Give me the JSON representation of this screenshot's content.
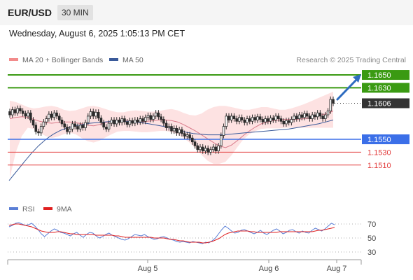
{
  "header": {
    "symbol": "EUR/USD",
    "timeframe": "30 MIN",
    "datetime": "Wednesday, August 6, 2025 1:05:13 PM CET"
  },
  "legend": {
    "ma20_label": "MA 20 + Bollinger Bands",
    "ma50_label": "MA 50",
    "credit": "Research © 2025 Trading Central"
  },
  "rsi_legend": {
    "rsi_label": "RSI",
    "ma_label": "9MA"
  },
  "colors": {
    "ma20": "#f28b8b",
    "ma50": "#3a5a9a",
    "band_fill": "#fde2e2",
    "resistance": "#3a9a12",
    "support_blue": "#3b6fe8",
    "support_red": "#e23b3b",
    "current": "#333333",
    "arrow": "#2e6cc0",
    "candle": "#2b2b2b",
    "rsi": "#5b7fd6",
    "rsi_ma": "#e02020"
  },
  "chart_data": [
    {
      "type": "candlestick",
      "title": "",
      "price_range": [
        1.1475,
        1.1662
      ],
      "x_tick_labels": [
        "Aug 5",
        "Aug 6",
        "Aug 7"
      ],
      "levels": [
        {
          "label": "1.1650",
          "value": 1.165,
          "kind": "resistance"
        },
        {
          "label": "1.1630",
          "value": 1.163,
          "kind": "resistance"
        },
        {
          "label": "1.1606",
          "value": 1.1606,
          "kind": "current"
        },
        {
          "label": "1.1550",
          "value": 1.155,
          "kind": "pivot"
        },
        {
          "label": "1.1530",
          "value": 1.153,
          "kind": "support"
        },
        {
          "label": "1.1510",
          "value": 1.151,
          "kind": "support"
        }
      ],
      "candles": [
        [
          1.1593,
          1.1588
        ],
        [
          1.1588,
          1.1596
        ],
        [
          1.1596,
          1.1591
        ],
        [
          1.1591,
          1.1598
        ],
        [
          1.1598,
          1.1594
        ],
        [
          1.1594,
          1.159
        ],
        [
          1.159,
          1.1586
        ],
        [
          1.1586,
          1.1591
        ],
        [
          1.1591,
          1.158
        ],
        [
          1.158,
          1.1572
        ],
        [
          1.1572,
          1.1562
        ],
        [
          1.1562,
          1.156
        ],
        [
          1.156,
          1.157
        ],
        [
          1.157,
          1.1577
        ],
        [
          1.1577,
          1.1582
        ],
        [
          1.1582,
          1.1589
        ],
        [
          1.1589,
          1.1584
        ],
        [
          1.1584,
          1.1591
        ],
        [
          1.1591,
          1.1586
        ],
        [
          1.1586,
          1.158
        ],
        [
          1.158,
          1.1574
        ],
        [
          1.1574,
          1.1569
        ],
        [
          1.1569,
          1.1562
        ],
        [
          1.1562,
          1.1566
        ],
        [
          1.1566,
          1.1574
        ],
        [
          1.1574,
          1.157
        ],
        [
          1.157,
          1.1566
        ],
        [
          1.1566,
          1.1572
        ],
        [
          1.1572,
          1.1568
        ],
        [
          1.1568,
          1.1576
        ],
        [
          1.1576,
          1.1586
        ],
        [
          1.1586,
          1.1593
        ],
        [
          1.1593,
          1.1586
        ],
        [
          1.1586,
          1.1592
        ],
        [
          1.1592,
          1.1583
        ],
        [
          1.1583,
          1.1576
        ],
        [
          1.1576,
          1.1569
        ],
        [
          1.1569,
          1.1566
        ],
        [
          1.1566,
          1.1575
        ],
        [
          1.1575,
          1.158
        ],
        [
          1.158,
          1.1574
        ],
        [
          1.1574,
          1.158
        ],
        [
          1.158,
          1.1576
        ],
        [
          1.1576,
          1.1582
        ],
        [
          1.1582,
          1.1577
        ],
        [
          1.1577,
          1.1573
        ],
        [
          1.1573,
          1.1579
        ],
        [
          1.1579,
          1.1575
        ],
        [
          1.1575,
          1.158
        ],
        [
          1.158,
          1.1577
        ],
        [
          1.1577,
          1.1582
        ],
        [
          1.1582,
          1.1578
        ],
        [
          1.1578,
          1.1584
        ],
        [
          1.1584,
          1.1587
        ],
        [
          1.1587,
          1.1581
        ],
        [
          1.1581,
          1.1586
        ],
        [
          1.1586,
          1.1591
        ],
        [
          1.1591,
          1.1585
        ],
        [
          1.1585,
          1.1581
        ],
        [
          1.1581,
          1.1575
        ],
        [
          1.1575,
          1.1568
        ],
        [
          1.1568,
          1.157
        ],
        [
          1.157,
          1.1563
        ],
        [
          1.1563,
          1.1567
        ],
        [
          1.1567,
          1.156
        ],
        [
          1.156,
          1.1565
        ],
        [
          1.1565,
          1.1559
        ],
        [
          1.1559,
          1.1555
        ],
        [
          1.1555,
          1.1557
        ],
        [
          1.1557,
          1.1552
        ],
        [
          1.1552,
          1.1546
        ],
        [
          1.1546,
          1.154
        ],
        [
          1.154,
          1.1534
        ],
        [
          1.1534,
          1.1538
        ],
        [
          1.1538,
          1.1532
        ],
        [
          1.1532,
          1.1536
        ],
        [
          1.1536,
          1.153
        ],
        [
          1.153,
          1.1534
        ],
        [
          1.1534,
          1.1538
        ],
        [
          1.1538,
          1.1532
        ],
        [
          1.1532,
          1.154
        ],
        [
          1.154,
          1.1556
        ],
        [
          1.1556,
          1.157
        ],
        [
          1.157,
          1.1586
        ],
        [
          1.1586,
          1.158
        ],
        [
          1.158,
          1.1586
        ],
        [
          1.1586,
          1.1582
        ],
        [
          1.1582,
          1.1578
        ],
        [
          1.1578,
          1.1584
        ],
        [
          1.1584,
          1.158
        ],
        [
          1.158,
          1.1576
        ],
        [
          1.1576,
          1.1582
        ],
        [
          1.1582,
          1.1578
        ],
        [
          1.1578,
          1.1584
        ],
        [
          1.1584,
          1.158
        ],
        [
          1.158,
          1.1585
        ],
        [
          1.1585,
          1.1581
        ],
        [
          1.1581,
          1.1577
        ],
        [
          1.1577,
          1.1582
        ],
        [
          1.1582,
          1.1578
        ],
        [
          1.1578,
          1.1583
        ],
        [
          1.1583,
          1.158
        ],
        [
          1.158,
          1.1586
        ],
        [
          1.1586,
          1.1582
        ],
        [
          1.1582,
          1.1578
        ],
        [
          1.1578,
          1.1574
        ],
        [
          1.1574,
          1.1579
        ],
        [
          1.1579,
          1.1576
        ],
        [
          1.1576,
          1.1581
        ],
        [
          1.1581,
          1.1586
        ],
        [
          1.1586,
          1.1582
        ],
        [
          1.1582,
          1.1588
        ],
        [
          1.1588,
          1.1584
        ],
        [
          1.1584,
          1.159
        ],
        [
          1.159,
          1.1586
        ],
        [
          1.1586,
          1.1582
        ],
        [
          1.1582,
          1.1588
        ],
        [
          1.1588,
          1.1585
        ],
        [
          1.1585,
          1.1591
        ],
        [
          1.1591,
          1.1586
        ],
        [
          1.1586,
          1.1582
        ],
        [
          1.1582,
          1.1588
        ],
        [
          1.1588,
          1.1594
        ],
        [
          1.1594,
          1.1612
        ],
        [
          1.1612,
          1.1606
        ]
      ],
      "ma20": [
        1.1582,
        1.1584,
        1.1585,
        1.1584,
        1.1581,
        1.1578,
        1.1576,
        1.1575,
        1.1576,
        1.1577,
        1.1577,
        1.1576,
        1.1574,
        1.1572,
        1.1571,
        1.1573,
        1.1576,
        1.1578,
        1.1579,
        1.1579,
        1.1578,
        1.1577,
        1.1577,
        1.1578,
        1.1579,
        1.158,
        1.158,
        1.1579,
        1.1577,
        1.1573,
        1.1568,
        1.1563,
        1.1557,
        1.1551,
        1.1545,
        1.154,
        1.1537,
        1.1541,
        1.1548,
        1.1556,
        1.1563,
        1.1569,
        1.1574,
        1.1577,
        1.1579,
        1.158,
        1.1581,
        1.1581,
        1.1581,
        1.1582,
        1.1583,
        1.1585,
        1.1588,
        1.159,
        1.1594
      ],
      "ma50": [
        1.1486,
        1.15,
        1.1514,
        1.1528,
        1.154,
        1.155,
        1.1558,
        1.1564,
        1.1568,
        1.1571,
        1.1573,
        1.1575,
        1.1576,
        1.1577,
        1.1578,
        1.1578,
        1.1578,
        1.1577,
        1.1576,
        1.1574,
        1.1572,
        1.157,
        1.1567,
        1.1564,
        1.1561,
        1.1559,
        1.1558,
        1.1557,
        1.1557,
        1.1557,
        1.1558,
        1.1559,
        1.156,
        1.1561,
        1.1562,
        1.1563,
        1.1564,
        1.1565,
        1.1566,
        1.1568,
        1.157,
        1.1572,
        1.1574,
        1.1577,
        1.158
      ],
      "band_upper": [
        1.161,
        1.1608,
        1.1604,
        1.16,
        1.1598,
        1.1599,
        1.1601,
        1.1602,
        1.16,
        1.1596,
        1.1594,
        1.1595,
        1.1598,
        1.1601,
        1.1602,
        1.16,
        1.1597,
        1.1594,
        1.1592,
        1.1592,
        1.1594,
        1.1595,
        1.1594,
        1.1593,
        1.1593,
        1.1594,
        1.1596,
        1.1597,
        1.1595,
        1.1591,
        1.1588,
        1.1587,
        1.159,
        1.1596,
        1.16,
        1.1602,
        1.1602,
        1.16,
        1.1598,
        1.1596,
        1.1596,
        1.1598,
        1.16,
        1.16,
        1.1598,
        1.1596,
        1.1596,
        1.1598,
        1.1601,
        1.1604,
        1.1608,
        1.1612,
        1.1616,
        1.162,
        1.1624
      ],
      "band_lower": [
        1.149,
        1.153,
        1.1555,
        1.1568,
        1.1566,
        1.156,
        1.1555,
        1.1552,
        1.1554,
        1.1558,
        1.156,
        1.1558,
        1.1552,
        1.1547,
        1.1545,
        1.1548,
        1.1553,
        1.1558,
        1.1562,
        1.1563,
        1.1563,
        1.1562,
        1.1561,
        1.1561,
        1.1562,
        1.1563,
        1.1563,
        1.1561,
        1.1558,
        1.1552,
        1.1545,
        1.1536,
        1.1526,
        1.1517,
        1.1512,
        1.1512,
        1.1515,
        1.1525,
        1.1538,
        1.155,
        1.1558,
        1.1563,
        1.1566,
        1.1567,
        1.1567,
        1.1567,
        1.1568,
        1.1568,
        1.1568,
        1.1568,
        1.1568,
        1.1568,
        1.1568,
        1.1568,
        1.1568
      ]
    },
    {
      "type": "line",
      "title": "",
      "ylim": [
        22,
        82
      ],
      "y_tick_labels": [
        "70",
        "50",
        "30"
      ],
      "y_ticks": [
        70,
        50,
        30
      ],
      "series": [
        {
          "name": "RSI",
          "values": [
            66,
            68,
            71,
            72,
            70,
            68,
            69,
            71,
            67,
            62,
            56,
            52,
            56,
            60,
            63,
            61,
            58,
            57,
            55,
            53,
            56,
            58,
            54,
            51,
            55,
            58,
            57,
            53,
            50,
            52,
            55,
            57,
            54,
            52,
            50,
            48,
            47,
            49,
            52,
            55,
            54,
            53,
            55,
            52,
            50,
            48,
            49,
            51,
            52,
            50,
            48,
            47,
            45,
            44,
            45,
            44,
            43,
            45,
            44,
            43,
            42,
            44,
            43,
            46,
            50,
            56,
            62,
            67,
            64,
            60,
            57,
            58,
            61,
            62,
            60,
            58,
            56,
            58,
            61,
            57,
            55,
            58,
            61,
            63,
            60,
            56,
            58,
            61,
            62,
            59,
            57,
            60,
            58,
            57,
            61,
            64,
            62,
            60,
            63,
            67,
            71,
            69
          ]
        },
        {
          "name": "9MA",
          "values": [
            68,
            69,
            70,
            70,
            69,
            68,
            67,
            66,
            64,
            62,
            60,
            59,
            58,
            58,
            58,
            59,
            59,
            58,
            57,
            56,
            56,
            55,
            55,
            55,
            55,
            55,
            55,
            54,
            54,
            54,
            54,
            54,
            54,
            53,
            53,
            52,
            51,
            51,
            51,
            51,
            51,
            51,
            51,
            51,
            51,
            50,
            50,
            50,
            50,
            49,
            48,
            48,
            47,
            46,
            46,
            45,
            44,
            44,
            44,
            44,
            43,
            43,
            44,
            45,
            47,
            49,
            52,
            55,
            57,
            58,
            59,
            60,
            60,
            60,
            60,
            59,
            59,
            58,
            58,
            58,
            58,
            58,
            58,
            58,
            59,
            59,
            59,
            59,
            59,
            59,
            59,
            59,
            59,
            59,
            59,
            60,
            61,
            61,
            62,
            63,
            64,
            65
          ]
        }
      ],
      "x_tick_labels": [
        "Aug 5",
        "Aug 6",
        "Aug 7"
      ]
    }
  ]
}
